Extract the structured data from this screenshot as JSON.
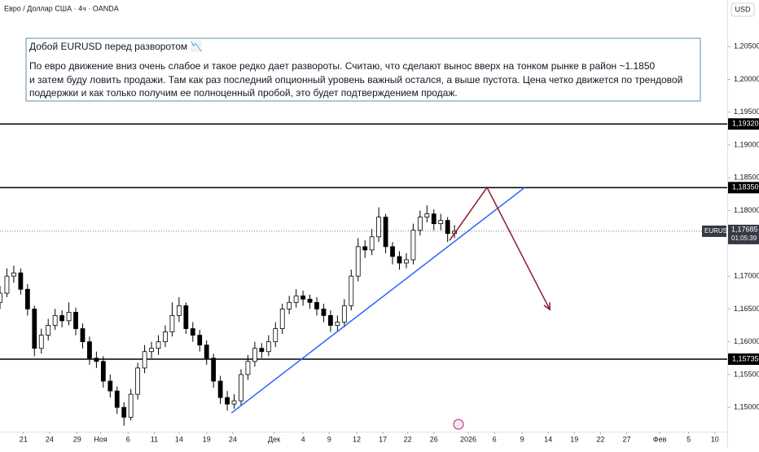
{
  "chart_data": {
    "type": "candlestick",
    "title": "Евро / Доллар США · 4ч · OANDA",
    "currency": "USD",
    "x": [
      0,
      5,
      10,
      15,
      20,
      25,
      30,
      35,
      40,
      45,
      50,
      55,
      60,
      65,
      70,
      75,
      80,
      85,
      90,
      95,
      100,
      105,
      110,
      115,
      120,
      125,
      130,
      135,
      140,
      145,
      150,
      155,
      160,
      165,
      170,
      175,
      180,
      185,
      190,
      195,
      200,
      205,
      210,
      215,
      220,
      225,
      230,
      235,
      240,
      245,
      250,
      255,
      260,
      265,
      270,
      275,
      280,
      285,
      290,
      295,
      300,
      305,
      310,
      315,
      320,
      325,
      330
    ],
    "open": [
      1.166,
      1.1674,
      1.17,
      1.1705,
      1.168,
      1.165,
      1.159,
      1.161,
      1.1625,
      1.164,
      1.1632,
      1.1645,
      1.162,
      1.16,
      1.1575,
      1.157,
      1.154,
      1.1525,
      1.15,
      1.1485,
      1.152,
      1.156,
      1.1585,
      1.159,
      1.16,
      1.1615,
      1.164,
      1.1655,
      1.162,
      1.161,
      1.1595,
      1.1575,
      1.154,
      1.1515,
      1.1505,
      1.151,
      1.155,
      1.157,
      1.159,
      1.1585,
      1.16,
      1.162,
      1.165,
      1.166,
      1.167,
      1.1665,
      1.166,
      1.165,
      1.164,
      1.1625,
      1.163,
      1.1655,
      1.17,
      1.1745,
      1.174,
      1.176,
      1.179,
      1.1745,
      1.173,
      1.172,
      1.1725,
      1.177,
      1.179,
      1.1795,
      1.178,
      1.1785,
      1.1765
    ],
    "high": [
      1.1685,
      1.1712,
      1.1716,
      1.1712,
      1.1688,
      1.1655,
      1.162,
      1.1635,
      1.165,
      1.1648,
      1.166,
      1.1652,
      1.1628,
      1.1608,
      1.1585,
      1.1578,
      1.155,
      1.1532,
      1.1508,
      1.1528,
      1.1568,
      1.1595,
      1.16,
      1.161,
      1.1625,
      1.166,
      1.1668,
      1.166,
      1.163,
      1.1618,
      1.1602,
      1.1582,
      1.1548,
      1.1525,
      1.152,
      1.1558,
      1.158,
      1.16,
      1.1598,
      1.161,
      1.163,
      1.1658,
      1.167,
      1.168,
      1.1678,
      1.1672,
      1.1668,
      1.1658,
      1.1648,
      1.164,
      1.1665,
      1.171,
      1.1758,
      1.1755,
      1.1772,
      1.1805,
      1.1795,
      1.1752,
      1.1738,
      1.1735,
      1.178,
      1.18,
      1.1808,
      1.1802,
      1.1795,
      1.179,
      1.1778
    ],
    "low": [
      1.165,
      1.1668,
      1.169,
      1.1672,
      1.164,
      1.1578,
      1.1582,
      1.1602,
      1.1618,
      1.1622,
      1.1625,
      1.161,
      1.159,
      1.1565,
      1.156,
      1.153,
      1.1515,
      1.149,
      1.1472,
      1.148,
      1.1512,
      1.1552,
      1.1575,
      1.158,
      1.1592,
      1.1608,
      1.163,
      1.1612,
      1.16,
      1.1585,
      1.1565,
      1.153,
      1.1505,
      1.1495,
      1.1498,
      1.1502,
      1.1542,
      1.1562,
      1.1575,
      1.1578,
      1.1592,
      1.1612,
      1.1642,
      1.1652,
      1.1655,
      1.165,
      1.164,
      1.163,
      1.1615,
      1.1615,
      1.1622,
      1.1648,
      1.1692,
      1.1728,
      1.1732,
      1.1752,
      1.1735,
      1.1718,
      1.171,
      1.1712,
      1.1718,
      1.1762,
      1.1782,
      1.177,
      1.177,
      1.1752,
      1.1758
    ],
    "close": [
      1.1674,
      1.17,
      1.1705,
      1.168,
      1.165,
      1.159,
      1.161,
      1.1625,
      1.164,
      1.1632,
      1.1645,
      1.162,
      1.16,
      1.1575,
      1.157,
      1.154,
      1.1525,
      1.15,
      1.1485,
      1.152,
      1.156,
      1.1585,
      1.159,
      1.16,
      1.1615,
      1.164,
      1.1655,
      1.162,
      1.161,
      1.1595,
      1.1575,
      1.154,
      1.1515,
      1.1505,
      1.151,
      1.155,
      1.157,
      1.159,
      1.1585,
      1.16,
      1.162,
      1.165,
      1.166,
      1.167,
      1.1665,
      1.166,
      1.165,
      1.164,
      1.1625,
      1.163,
      1.1655,
      1.17,
      1.1745,
      1.174,
      1.176,
      1.179,
      1.1745,
      1.173,
      1.172,
      1.1725,
      1.177,
      1.179,
      1.1795,
      1.178,
      1.1785,
      1.1765,
      1.17685
    ],
    "xlim": [
      0,
      528
    ],
    "ylim": [
      1.1463,
      1.2121
    ],
    "yticks": [
      {
        "value": 1.15,
        "label": "1,15000"
      },
      {
        "value": 1.155,
        "label": "1,15500"
      },
      {
        "value": 1.16,
        "label": "1,16000"
      },
      {
        "value": 1.165,
        "label": "1,16500"
      },
      {
        "value": 1.17,
        "label": "1,17000"
      },
      {
        "value": 1.18,
        "label": "1,18000"
      },
      {
        "value": 1.185,
        "label": "1,18500"
      },
      {
        "value": 1.19,
        "label": "1,19000"
      },
      {
        "value": 1.195,
        "label": "1,19500"
      },
      {
        "value": 1.2,
        "label": "1,20000"
      },
      {
        "value": 1.205,
        "label": "1,20500"
      }
    ],
    "xticks": [
      {
        "value": 17,
        "label": "21"
      },
      {
        "value": 36,
        "label": "24"
      },
      {
        "value": 56,
        "label": "29"
      },
      {
        "value": 73,
        "label": "Ноя"
      },
      {
        "value": 93,
        "label": "6"
      },
      {
        "value": 112,
        "label": "11"
      },
      {
        "value": 130,
        "label": "14"
      },
      {
        "value": 150,
        "label": "19"
      },
      {
        "value": 169,
        "label": "24"
      },
      {
        "value": 199,
        "label": "Дек"
      },
      {
        "value": 220,
        "label": "4"
      },
      {
        "value": 239,
        "label": "9"
      },
      {
        "value": 259,
        "label": "12"
      },
      {
        "value": 278,
        "label": "17"
      },
      {
        "value": 296,
        "label": "22"
      },
      {
        "value": 315,
        "label": "26"
      },
      {
        "value": 340,
        "label": "2026"
      },
      {
        "value": 359,
        "label": "6"
      },
      {
        "value": 379,
        "label": "9"
      },
      {
        "value": 398,
        "label": "14"
      },
      {
        "value": 417,
        "label": "19"
      },
      {
        "value": 436,
        "label": "22"
      },
      {
        "value": 455,
        "label": "27"
      },
      {
        "value": 479,
        "label": "Фев"
      },
      {
        "value": 500,
        "label": "5"
      },
      {
        "value": 519,
        "label": "10"
      }
    ],
    "levels": [
      {
        "value": 1.1932,
        "label": "1,19320"
      },
      {
        "value": 1.1835,
        "label": "1,18350"
      },
      {
        "value": 1.15735,
        "label": "1,15735"
      }
    ],
    "current": {
      "name": "EURUSD",
      "value": 1.17685,
      "label": "1,17685",
      "countdown": "01:05:39"
    },
    "trendline": {
      "color": "#2962ff",
      "x": [
        168,
        381
      ],
      "y": [
        1.14913,
        1.18352
      ]
    },
    "arrow": {
      "color": "#8b1a2b",
      "x": [
        326.4,
        353.6,
        399.2
      ],
      "y": [
        1.17545,
        1.18352,
        1.1649
      ]
    },
    "annotation": {
      "title": "Добой EURUSD перед разворотом 📉",
      "lines": [
        "По евро движение вниз очень слабое и такое редко дает развороты. Считаю, что сделают вынос вверх на тонком рынке в район ~1.1850",
        "и затем буду ловить продажи. Там как раз последний опционный уровень важный остался, а выше пустота. Цена четко движется по трендовой",
        "поддержки и как только получим ее полноценный пробой, это будет подтверждением продаж."
      ]
    }
  }
}
